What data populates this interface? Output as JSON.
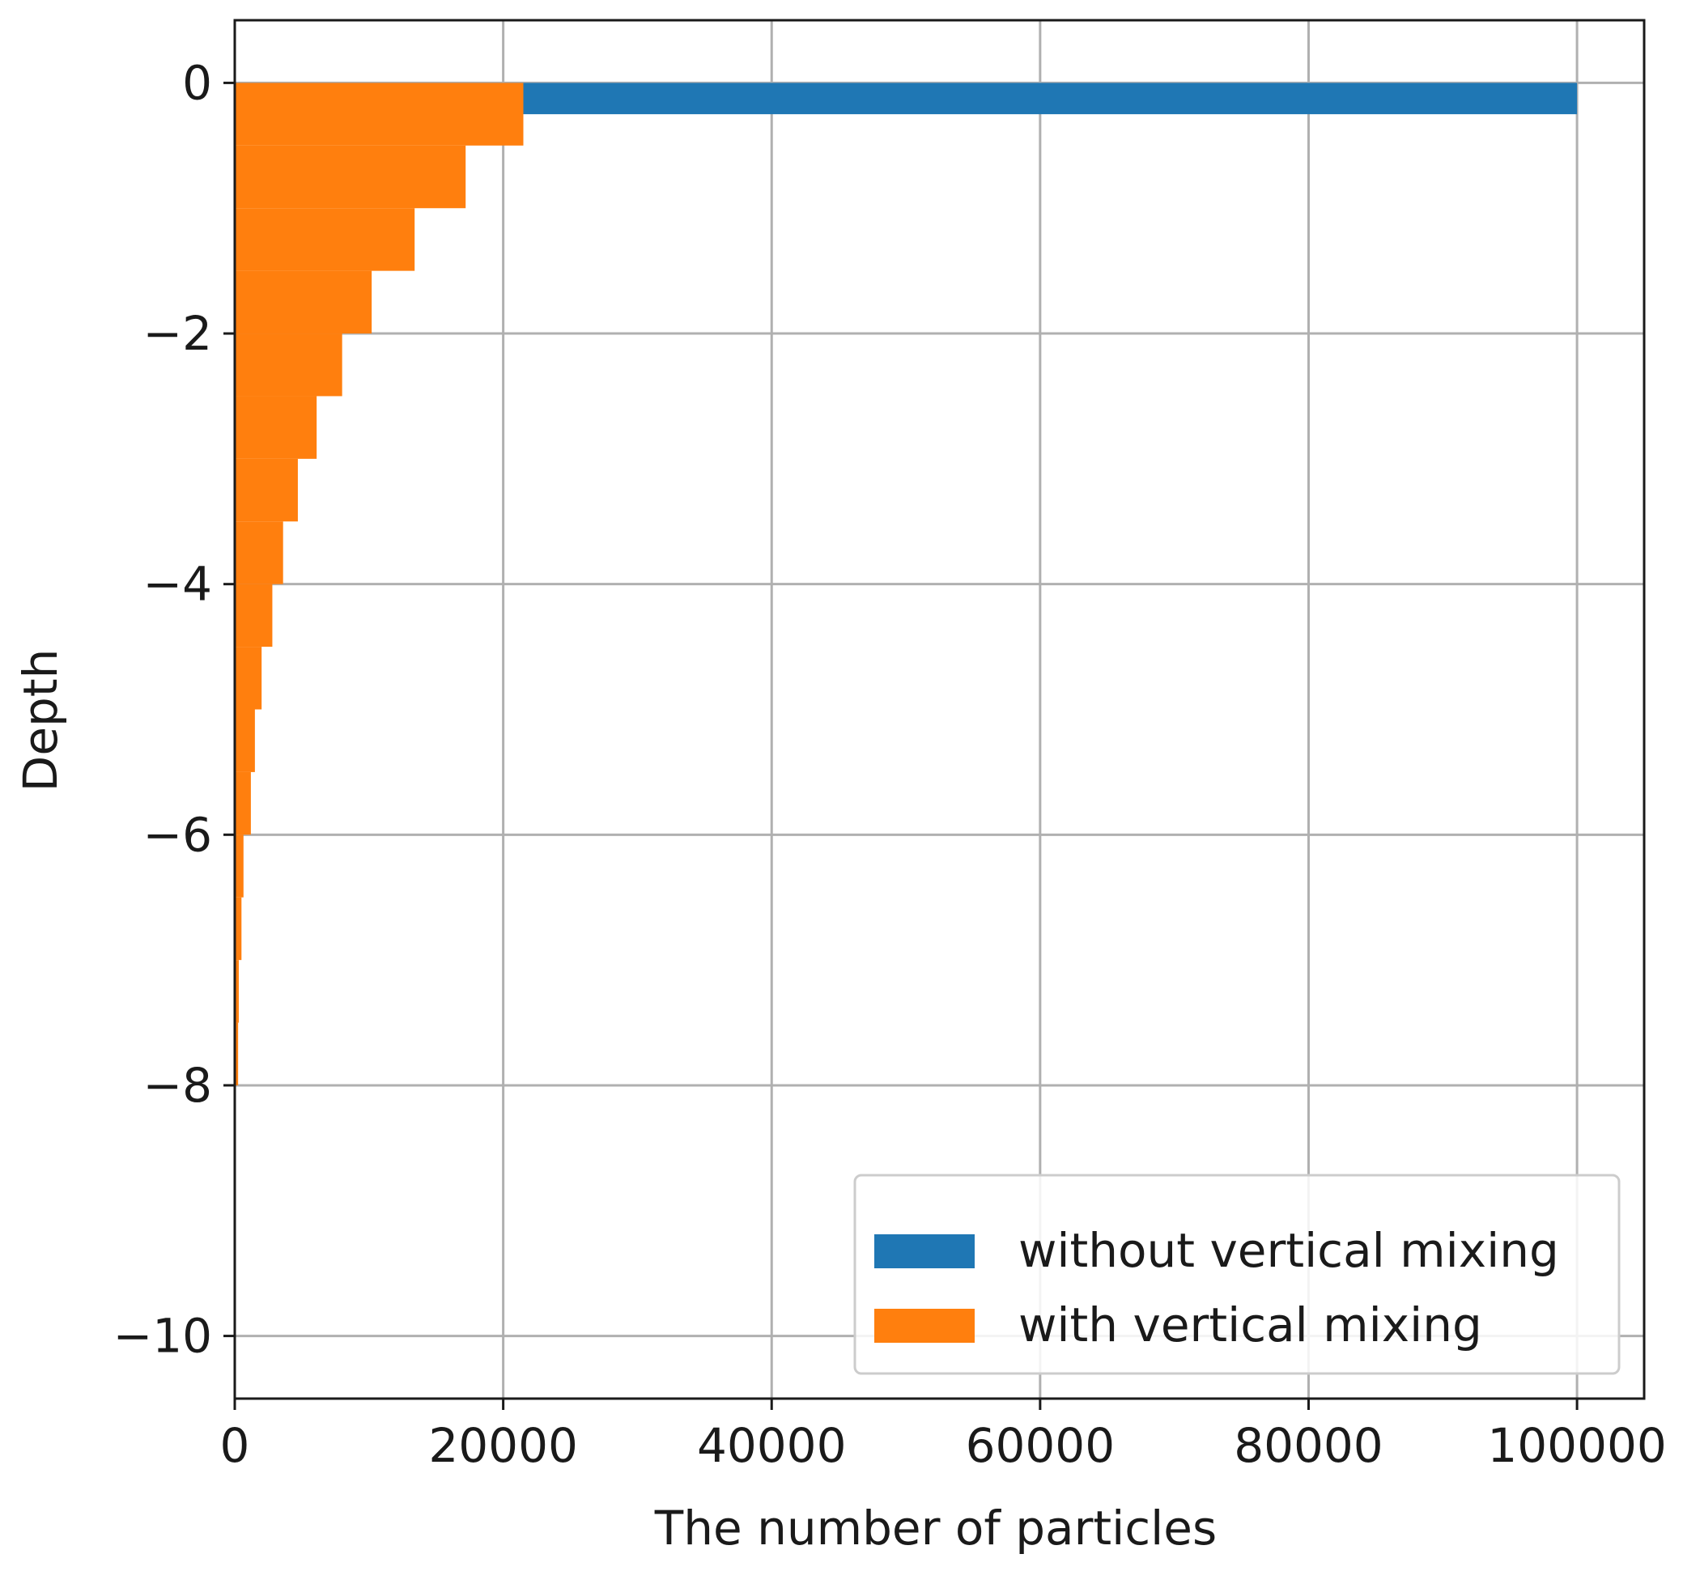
{
  "chart_data": {
    "type": "bar",
    "orientation": "horizontal",
    "title": "",
    "xlabel": "The number of particles",
    "ylabel": "Depth",
    "xlim": [
      0,
      105000
    ],
    "ylim": [
      -10.5,
      0.5
    ],
    "xticks": [
      0,
      20000,
      40000,
      60000,
      80000,
      100000
    ],
    "xtick_labels": [
      "0",
      "20000",
      "40000",
      "60000",
      "80000",
      "100000"
    ],
    "yticks": [
      0,
      -2,
      -4,
      -6,
      -8,
      -10
    ],
    "ytick_labels": [
      "0",
      "−2",
      "−4",
      "−6",
      "−8",
      "−10"
    ],
    "grid": true,
    "legend_position": "lower-right",
    "bin_width": 0.5,
    "series": [
      {
        "name": "without vertical mixing",
        "color": "#1f77b4",
        "bins": [
          {
            "top": 0,
            "bottom": -0.25,
            "value": 100000
          }
        ]
      },
      {
        "name": "with vertical mixing",
        "color": "#ff7f0e",
        "bins": [
          {
            "top": 0,
            "bottom": -0.5,
            "value": 21500
          },
          {
            "top": -0.5,
            "bottom": -1.0,
            "value": 17200
          },
          {
            "top": -1.0,
            "bottom": -1.5,
            "value": 13400
          },
          {
            "top": -1.5,
            "bottom": -2.0,
            "value": 10200
          },
          {
            "top": -2.0,
            "bottom": -2.5,
            "value": 8000
          },
          {
            "top": -2.5,
            "bottom": -3.0,
            "value": 6100
          },
          {
            "top": -3.0,
            "bottom": -3.5,
            "value": 4700
          },
          {
            "top": -3.5,
            "bottom": -4.0,
            "value": 3600
          },
          {
            "top": -4.0,
            "bottom": -4.5,
            "value": 2800
          },
          {
            "top": -4.5,
            "bottom": -5.0,
            "value": 2000
          },
          {
            "top": -5.0,
            "bottom": -5.5,
            "value": 1500
          },
          {
            "top": -5.5,
            "bottom": -6.0,
            "value": 1200
          },
          {
            "top": -6.0,
            "bottom": -6.5,
            "value": 650
          },
          {
            "top": -6.5,
            "bottom": -7.0,
            "value": 500
          },
          {
            "top": -7.0,
            "bottom": -7.5,
            "value": 300
          },
          {
            "top": -7.5,
            "bottom": -8.0,
            "value": 250
          }
        ]
      }
    ]
  }
}
